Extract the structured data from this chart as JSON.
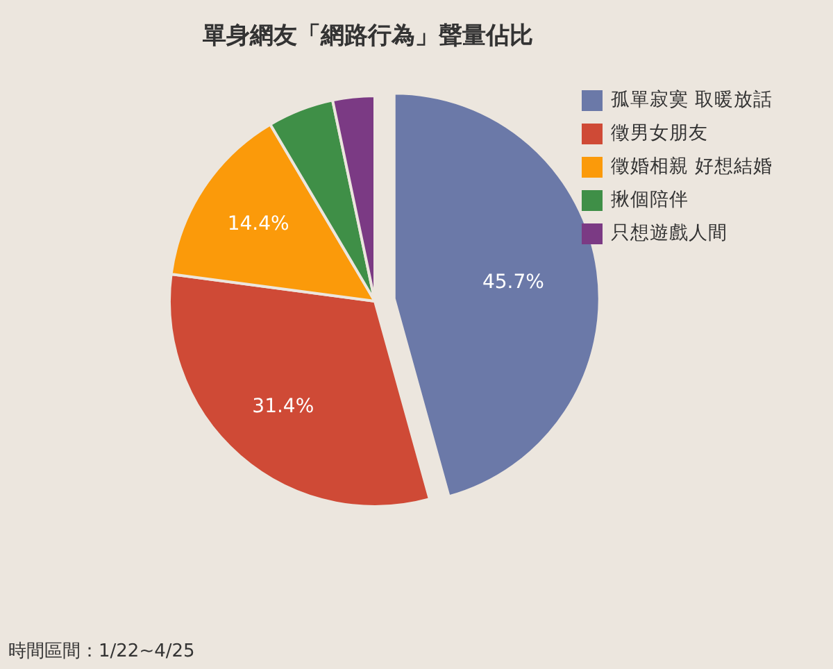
{
  "chart_data": {
    "type": "pie",
    "title": "單身網友「網路行為」聲量佔比",
    "categories": [
      "孤單寂寞 取暖放話",
      "徵男女朋友",
      "徵婚相親 好想結婚",
      "揪個陪伴",
      "只想遊戲人間"
    ],
    "values": [
      45.7,
      31.4,
      14.4,
      5.2,
      3.3
    ],
    "colors": [
      "#6b79a8",
      "#cf4a36",
      "#fb9a0a",
      "#3f8f47",
      "#7b3a84"
    ],
    "value_labels": [
      "45.7%",
      "31.4%",
      "14.4%",
      null,
      null
    ],
    "legend": "top right",
    "annotations": [
      "時間區間：1/22~4/25"
    ]
  }
}
